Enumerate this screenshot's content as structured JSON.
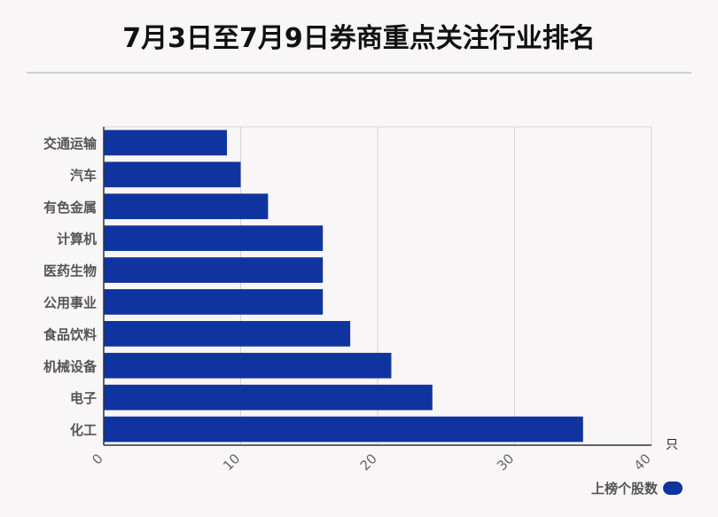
{
  "page": {
    "title": "7月3日至7月9日券商重点关注行业排名"
  },
  "chart_data": {
    "type": "bar",
    "orientation": "horizontal",
    "categories": [
      "交通运输",
      "汽车",
      "有色金属",
      "计算机",
      "医药生物",
      "公用事业",
      "食品饮料",
      "机械设备",
      "电子",
      "化工"
    ],
    "series": [
      {
        "name": "上榜个股数",
        "values": [
          9,
          10,
          12,
          16,
          16,
          16,
          18,
          21,
          24,
          35
        ],
        "color": "#10349f"
      }
    ],
    "xlim": [
      0,
      40
    ],
    "xticks": [
      "0",
      "10",
      "20",
      "30",
      "40"
    ],
    "unit_label": "只",
    "grid": true,
    "legend_position": "bottom-right"
  }
}
